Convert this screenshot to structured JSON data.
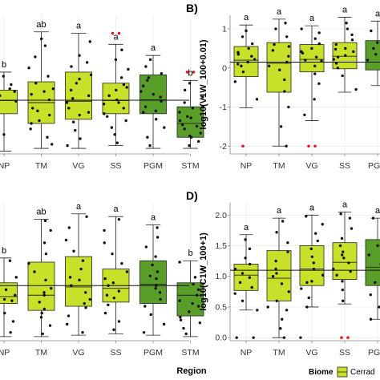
{
  "colors": {
    "light_green": "#c8e02a",
    "dark_green": "#5a9e2a",
    "point": "#111111",
    "outlier": "#e01919",
    "panel_bg": "#ffffff",
    "grid": "#e8e8e8",
    "axis_line": "#888888"
  },
  "region_axis_title": "Region",
  "legend": {
    "title": "Biome",
    "items": [
      "Cerrad"
    ]
  },
  "chart_data": [
    {
      "type": "box",
      "panel_label": "",
      "categories": [
        "NP",
        "TM",
        "VG",
        "SS",
        "PGM",
        "STM"
      ],
      "ylabel": "",
      "ylim": [
        0.0,
        1.0
      ],
      "yticks": [],
      "ref_line": 0.387,
      "boxes": [
        {
          "cat": "NP",
          "whisker_low": 0.02,
          "q1": 0.29,
          "median": 0.385,
          "q3": 0.46,
          "whisker_high": 0.59,
          "fill": "light",
          "sig": "b"
        },
        {
          "cat": "TM",
          "whisker_low": 0.04,
          "q1": 0.22,
          "median": 0.37,
          "q3": 0.52,
          "whisker_high": 0.88,
          "fill": "light",
          "sig": "ab"
        },
        {
          "cat": "VG",
          "whisker_low": 0.04,
          "q1": 0.25,
          "median": 0.38,
          "q3": 0.59,
          "whisker_high": 0.87,
          "fill": "light",
          "sig": "a"
        },
        {
          "cat": "SS",
          "whisker_low": 0.06,
          "q1": 0.29,
          "median": 0.385,
          "q3": 0.51,
          "whisker_high": 0.79,
          "fill": "light",
          "sig": "a"
        },
        {
          "cat": "PGM",
          "whisker_low": 0.04,
          "q1": 0.29,
          "median": 0.39,
          "q3": 0.57,
          "whisker_high": 0.71,
          "fill": "dark",
          "sig": "a"
        },
        {
          "cat": "STM",
          "whisker_low": 0.04,
          "q1": 0.12,
          "median": 0.22,
          "q3": 0.34,
          "whisker_high": 0.53,
          "fill": "dark",
          "sig": "b"
        }
      ],
      "outliers": [
        {
          "cat": "SS",
          "value": 0.87
        },
        {
          "cat": "SS",
          "value": 0.87
        },
        {
          "cat": "STM",
          "value": 0.59
        },
        {
          "cat": "STM",
          "value": 0.59
        }
      ],
      "points": {
        "NP": [
          0.07,
          0.18,
          0.23,
          0.28,
          0.32,
          0.36,
          0.38,
          0.4,
          0.42,
          0.45,
          0.47,
          0.5,
          0.56,
          0.04,
          0.14
        ],
        "TM": [
          0.07,
          0.12,
          0.18,
          0.24,
          0.28,
          0.33,
          0.39,
          0.43,
          0.47,
          0.51,
          0.56,
          0.62,
          0.7,
          0.78,
          0.83,
          0.22,
          0.31,
          0.45
        ],
        "VG": [
          0.06,
          0.11,
          0.17,
          0.23,
          0.28,
          0.33,
          0.37,
          0.42,
          0.46,
          0.51,
          0.57,
          0.63,
          0.71,
          0.81,
          0.3,
          0.4,
          0.54,
          0.66
        ],
        "SS": [
          0.08,
          0.14,
          0.19,
          0.24,
          0.29,
          0.33,
          0.36,
          0.39,
          0.42,
          0.46,
          0.5,
          0.55,
          0.61,
          0.68,
          0.75,
          0.27,
          0.37,
          0.48
        ],
        "PGM": [
          0.06,
          0.12,
          0.19,
          0.25,
          0.3,
          0.34,
          0.38,
          0.41,
          0.45,
          0.49,
          0.53,
          0.58,
          0.63,
          0.68,
          0.31,
          0.43,
          0.55
        ],
        "STM": [
          0.06,
          0.09,
          0.12,
          0.15,
          0.18,
          0.21,
          0.24,
          0.27,
          0.3,
          0.33,
          0.37,
          0.41,
          0.46,
          0.51,
          0.13,
          0.2,
          0.26,
          0.34
        ]
      }
    },
    {
      "type": "box",
      "panel_label": "B)",
      "categories": [
        "NP",
        "TM",
        "VG",
        "SS",
        "PGM"
      ],
      "ylabel": "log10(V1W_100+0.01)",
      "ylim": [
        -2.2,
        1.35
      ],
      "yticks": [
        1,
        0,
        -1,
        -2
      ],
      "ref_line": 0.15,
      "boxes": [
        {
          "cat": "NP",
          "whisker_low": -1.02,
          "q1": -0.22,
          "median": 0.2,
          "q3": 0.55,
          "whisker_high": 1.1,
          "fill": "light",
          "sig": "a"
        },
        {
          "cat": "TM",
          "whisker_low": -2.0,
          "q1": -0.62,
          "median": 0.12,
          "q3": 0.65,
          "whisker_high": 1.25,
          "fill": "light",
          "sig": "a"
        },
        {
          "cat": "VG",
          "whisker_low": -1.35,
          "q1": -0.1,
          "median": 0.22,
          "q3": 0.6,
          "whisker_high": 1.08,
          "fill": "light",
          "sig": "a"
        },
        {
          "cat": "SS",
          "whisker_low": -0.62,
          "q1": -0.02,
          "median": 0.3,
          "q3": 0.65,
          "whisker_high": 1.3,
          "fill": "light",
          "sig": "a"
        },
        {
          "cat": "PGM",
          "whisker_low": -0.45,
          "q1": -0.05,
          "median": 0.15,
          "q3": 0.7,
          "whisker_high": 1.2,
          "fill": "dark",
          "sig": "a"
        }
      ],
      "outliers": [
        {
          "cat": "NP",
          "value": -2.0
        },
        {
          "cat": "VG",
          "value": -2.0
        },
        {
          "cat": "VG",
          "value": -2.0
        }
      ],
      "points": {
        "NP": [
          -0.8,
          -0.35,
          -0.1,
          0.05,
          0.15,
          0.22,
          0.3,
          0.4,
          0.5,
          0.62,
          0.8,
          0.95,
          0.1,
          0.35
        ],
        "TM": [
          -2.0,
          -1.5,
          -1.0,
          -0.6,
          -0.3,
          -0.05,
          0.15,
          0.3,
          0.45,
          0.6,
          0.8,
          1.0,
          1.15,
          0.05,
          0.55
        ],
        "VG": [
          -1.2,
          -0.8,
          -0.4,
          -0.15,
          0.05,
          0.18,
          0.28,
          0.38,
          0.5,
          0.62,
          0.75,
          0.9,
          1.0,
          0.2,
          0.42
        ],
        "SS": [
          -0.55,
          -0.2,
          0.0,
          0.12,
          0.22,
          0.32,
          0.42,
          0.5,
          0.6,
          0.72,
          0.85,
          1.0,
          1.15,
          0.28,
          0.48
        ],
        "PGM": [
          -0.35,
          -0.1,
          0.05,
          0.2,
          0.35,
          0.5,
          0.65,
          0.8,
          0.95,
          1.1
        ]
      }
    },
    {
      "type": "box",
      "panel_label": "",
      "categories": [
        "NP",
        "TM",
        "VG",
        "SS",
        "PGM",
        "STM"
      ],
      "ylabel": "",
      "ylim": [
        0.0,
        1.0
      ],
      "yticks": [],
      "ref_line": 0.4,
      "boxes": [
        {
          "cat": "NP",
          "whisker_low": 0.03,
          "q1": 0.27,
          "median": 0.32,
          "q3": 0.42,
          "whisker_high": 0.6,
          "fill": "light",
          "sig": "b"
        },
        {
          "cat": "TM",
          "whisker_low": 0.03,
          "q1": 0.22,
          "median": 0.33,
          "q3": 0.57,
          "whisker_high": 0.88,
          "fill": "light",
          "sig": "ab"
        },
        {
          "cat": "VG",
          "whisker_low": 0.04,
          "q1": 0.25,
          "median": 0.39,
          "q3": 0.61,
          "whisker_high": 0.92,
          "fill": "light",
          "sig": "a"
        },
        {
          "cat": "SS",
          "whisker_low": 0.05,
          "q1": 0.28,
          "median": 0.38,
          "q3": 0.52,
          "whisker_high": 0.9,
          "fill": "light",
          "sig": "a"
        },
        {
          "cat": "PGM",
          "whisker_low": 0.04,
          "q1": 0.27,
          "median": 0.41,
          "q3": 0.58,
          "whisker_high": 0.84,
          "fill": "dark",
          "sig": "a"
        },
        {
          "cat": "STM",
          "whisker_low": 0.03,
          "q1": 0.18,
          "median": 0.33,
          "q3": 0.42,
          "whisker_high": 0.58,
          "fill": "dark",
          "sig": "b"
        }
      ],
      "outliers": [],
      "points": {
        "NP": [
          0.06,
          0.14,
          0.2,
          0.25,
          0.29,
          0.33,
          0.37,
          0.41,
          0.46,
          0.52,
          0.58,
          0.1,
          0.3
        ],
        "TM": [
          0.05,
          0.11,
          0.17,
          0.23,
          0.28,
          0.33,
          0.38,
          0.44,
          0.5,
          0.56,
          0.63,
          0.71,
          0.8,
          0.87,
          0.2,
          0.35
        ],
        "VG": [
          0.06,
          0.12,
          0.18,
          0.24,
          0.3,
          0.35,
          0.4,
          0.46,
          0.52,
          0.58,
          0.65,
          0.73,
          0.82,
          0.9,
          0.27,
          0.44
        ],
        "SS": [
          0.08,
          0.14,
          0.2,
          0.26,
          0.31,
          0.36,
          0.4,
          0.45,
          0.5,
          0.56,
          0.63,
          0.71,
          0.8,
          0.88,
          0.33,
          0.42
        ],
        "PGM": [
          0.06,
          0.12,
          0.19,
          0.25,
          0.3,
          0.35,
          0.4,
          0.45,
          0.5,
          0.55,
          0.61,
          0.68,
          0.75,
          0.82,
          0.38,
          0.47
        ],
        "STM": [
          0.05,
          0.09,
          0.13,
          0.17,
          0.21,
          0.25,
          0.29,
          0.33,
          0.37,
          0.41,
          0.46,
          0.52,
          0.57,
          0.15,
          0.27
        ]
      }
    },
    {
      "type": "box",
      "panel_label": "D)",
      "categories": [
        "NP",
        "TM",
        "VG",
        "SS",
        "PGM"
      ],
      "ylabel": "log10(C1W_100+1)",
      "ylim": [
        -0.05,
        2.2
      ],
      "yticks": [
        2.0,
        1.5,
        1.0,
        0.5,
        0.0
      ],
      "ref_line": 1.1,
      "boxes": [
        {
          "cat": "NP",
          "whisker_low": 0.45,
          "q1": 0.77,
          "median": 1.02,
          "q3": 1.2,
          "whisker_high": 1.68,
          "fill": "light",
          "sig": "a"
        },
        {
          "cat": "TM",
          "whisker_low": 0.0,
          "q1": 0.6,
          "median": 0.97,
          "q3": 1.42,
          "whisker_high": 1.95,
          "fill": "light",
          "sig": "a"
        },
        {
          "cat": "VG",
          "whisker_low": 0.5,
          "q1": 0.85,
          "median": 1.12,
          "q3": 1.5,
          "whisker_high": 2.0,
          "fill": "light",
          "sig": "a"
        },
        {
          "cat": "SS",
          "whisker_low": 0.55,
          "q1": 0.95,
          "median": 1.23,
          "q3": 1.55,
          "whisker_high": 2.05,
          "fill": "light",
          "sig": "a"
        },
        {
          "cat": "PGM",
          "whisker_low": 0.3,
          "q1": 0.85,
          "median": 1.15,
          "q3": 1.6,
          "whisker_high": 1.95,
          "fill": "dark",
          "sig": "a"
        }
      ],
      "outliers": [
        {
          "cat": "SS",
          "value": 0.0
        },
        {
          "cat": "SS",
          "value": 0.0
        }
      ],
      "points": {
        "NP": [
          0.45,
          0.6,
          0.72,
          0.82,
          0.9,
          0.98,
          1.05,
          1.12,
          1.2,
          1.3,
          1.45,
          1.6,
          0.0,
          0.0
        ],
        "TM": [
          0.0,
          0.15,
          0.3,
          0.45,
          0.6,
          0.75,
          0.88,
          1.0,
          1.12,
          1.25,
          1.4,
          1.55,
          1.72,
          1.9,
          0.5,
          1.05
        ],
        "VG": [
          0.5,
          0.65,
          0.8,
          0.92,
          1.02,
          1.12,
          1.22,
          1.32,
          1.45,
          1.58,
          1.7,
          1.85,
          1.98,
          0.0,
          0.9
        ],
        "SS": [
          0.6,
          0.78,
          0.92,
          1.02,
          1.12,
          1.22,
          1.3,
          1.4,
          1.5,
          1.62,
          1.78,
          1.95,
          2.02,
          1.08,
          1.35
        ],
        "PGM": [
          0.3,
          0.5,
          0.7,
          0.9,
          1.05,
          1.2,
          1.35,
          1.5,
          1.65,
          1.8,
          1.95,
          0.0
        ]
      }
    }
  ]
}
